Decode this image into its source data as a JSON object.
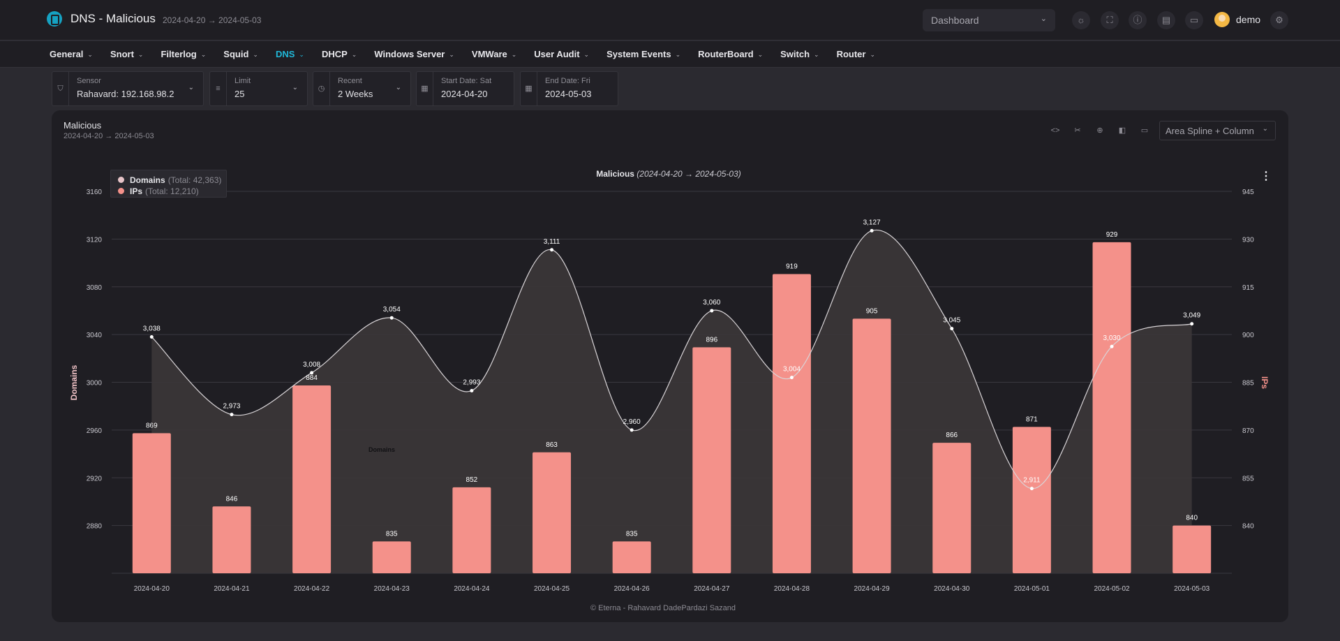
{
  "header": {
    "title": "DNS - Malicious",
    "range": "2024-04-20 → 2024-05-03",
    "dashboard_select": "Dashboard",
    "user": "demo",
    "icons": [
      "sun-icon",
      "fullscreen-icon",
      "info-icon",
      "server-icon",
      "briefcase-icon",
      "settings-icon"
    ]
  },
  "nav": [
    {
      "label": "General",
      "active": false
    },
    {
      "label": "Snort",
      "active": false
    },
    {
      "label": "Filterlog",
      "active": false
    },
    {
      "label": "Squid",
      "active": false
    },
    {
      "label": "DNS",
      "active": true
    },
    {
      "label": "DHCP",
      "active": false
    },
    {
      "label": "Windows Server",
      "active": false
    },
    {
      "label": "VMWare",
      "active": false
    },
    {
      "label": "User Audit",
      "active": false
    },
    {
      "label": "System Events",
      "active": false
    },
    {
      "label": "RouterBoard",
      "active": false
    },
    {
      "label": "Switch",
      "active": false
    },
    {
      "label": "Router",
      "active": false
    }
  ],
  "filters": {
    "sensor": {
      "label": "Sensor",
      "value": "Rahavard: 192.168.98.2"
    },
    "limit": {
      "label": "Limit",
      "value": "25"
    },
    "recent": {
      "label": "Recent",
      "value": "2 Weeks"
    },
    "start": {
      "label": "Start Date: Sat",
      "value": "2024-04-20"
    },
    "end": {
      "label": "End Date: Fri",
      "value": "2024-05-03"
    }
  },
  "panel": {
    "title": "Malicious",
    "subtitle": "2024-04-20 → 2024-05-03",
    "chart_type_select": "Area Spline + Column",
    "tools": [
      "code-icon",
      "scissors-icon",
      "target-icon",
      "sidebar-icon",
      "comment-icon"
    ]
  },
  "colors": {
    "domains": "#d7d7dd",
    "ips": "#f4918a",
    "accent": "#20b8d8"
  },
  "chart_data": {
    "type": "area spline + column",
    "title": "Malicious",
    "title_range": "(2024-04-20 → 2024-05-03)",
    "categories": [
      "2024-04-20",
      "2024-04-21",
      "2024-04-22",
      "2024-04-23",
      "2024-04-24",
      "2024-04-25",
      "2024-04-26",
      "2024-04-27",
      "2024-04-28",
      "2024-04-29",
      "2024-04-30",
      "2024-05-01",
      "2024-05-02",
      "2024-05-03"
    ],
    "series": [
      {
        "name": "Domains",
        "total_label": "(Total: 42,363)",
        "type": "areaspline",
        "axis": "left",
        "values": [
          3038,
          2973,
          3008,
          3054,
          2993,
          3111,
          2960,
          3060,
          3004,
          3127,
          3045,
          2911,
          3030,
          3049
        ],
        "labels": [
          "3,038",
          "2,973",
          "3,008",
          "3,054",
          "2,993",
          "3,111",
          "2,960",
          "3,060",
          "3,004",
          "3,127",
          "3,045",
          "2,911",
          "3,030",
          "3,049"
        ]
      },
      {
        "name": "IPs",
        "total_label": "(Total: 12,210)",
        "type": "column",
        "axis": "right",
        "values": [
          869,
          846,
          884,
          835,
          852,
          863,
          835,
          896,
          919,
          905,
          866,
          871,
          929,
          840
        ],
        "labels": [
          "869",
          "846",
          "884",
          "835",
          "852",
          "863",
          "835",
          "896",
          "919",
          "905",
          "866",
          "871",
          "929",
          "840"
        ]
      }
    ],
    "ylabel_left": "Domains",
    "ylabel_right": "IPs",
    "ylim_left": [
      2840,
      3160
    ],
    "yticks_left": [
      "2880",
      "2920",
      "2960",
      "3000",
      "3040",
      "3080",
      "3120",
      "3160"
    ],
    "ylim_right": [
      825,
      945
    ],
    "yticks_right": [
      "840",
      "855",
      "870",
      "885",
      "900",
      "915",
      "930",
      "945"
    ],
    "annotation": "Domains",
    "credits": "© Eterna - Rahavard DadePardazi Sazand",
    "legend_position": "top-left",
    "grid": true
  }
}
